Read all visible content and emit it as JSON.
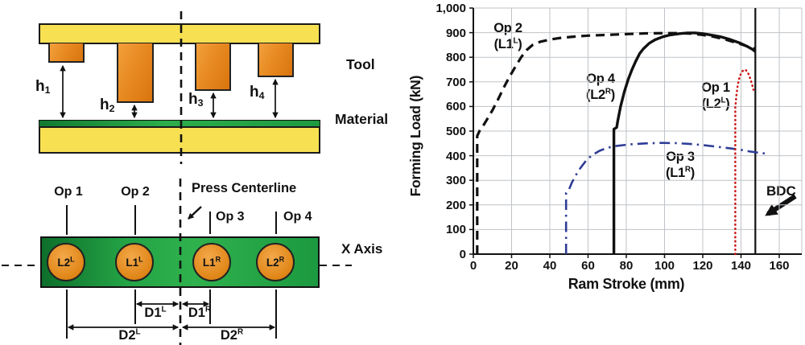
{
  "side_view": {
    "tool_label": "Tool",
    "material_label": "Material",
    "gap_labels": [
      {
        "base": "h",
        "sub": "1"
      },
      {
        "base": "h",
        "sub": "2"
      },
      {
        "base": "h",
        "sub": "3"
      },
      {
        "base": "h",
        "sub": "4"
      }
    ]
  },
  "top_view": {
    "op_labels": [
      "Op 1",
      "Op 2",
      "Op 3",
      "Op 4"
    ],
    "press_centerline_label": "Press Centerline",
    "x_axis_label": "X Axis",
    "station_labels": [
      {
        "base": "L2",
        "sup": "L"
      },
      {
        "base": "L1",
        "sup": "L"
      },
      {
        "base": "L1",
        "sup": "R"
      },
      {
        "base": "L2",
        "sup": "R"
      }
    ],
    "dim_labels": [
      {
        "base": "D1",
        "sup": "L"
      },
      {
        "base": "D1",
        "sup": "R"
      },
      {
        "base": "D2",
        "sup": "L"
      },
      {
        "base": "D2",
        "sup": "R"
      }
    ]
  },
  "chart_data": {
    "type": "line",
    "title": "",
    "xlabel": "Ram Stroke (mm)",
    "ylabel": "Forming Load (kN)",
    "xlim": [
      0,
      160
    ],
    "ylim": [
      0,
      1000
    ],
    "grid": true,
    "x_ticks": [
      0,
      20,
      40,
      60,
      80,
      100,
      120,
      140,
      160
    ],
    "x_tick_labels": [
      "0",
      "20",
      "40",
      "60",
      "80",
      "100",
      "120",
      "140",
      "160"
    ],
    "y_ticks": [
      0,
      100,
      200,
      300,
      400,
      500,
      600,
      700,
      800,
      900,
      1000
    ],
    "y_tick_labels": [
      "0",
      "100",
      "200",
      "300",
      "400",
      "500",
      "600",
      "700",
      "800",
      "900",
      "1,000"
    ],
    "bdc_line_x": 147.5,
    "bdc_label": "BDC",
    "annotations": [
      {
        "l1": "Op 2",
        "l2a": "(L1",
        "l2sup": "L",
        "l2b": ")"
      },
      {
        "l1": "Op 4",
        "l2a": "(L2",
        "l2sup": "R",
        "l2b": ")"
      },
      {
        "l1": "Op 1",
        "l2a": "(L2",
        "l2sup": "L",
        "l2b": ")"
      },
      {
        "l1": "Op 3",
        "l2a": "(L1",
        "l2sup": "R",
        "l2b": ")"
      }
    ],
    "series": [
      {
        "name": "Op 2 (L1-left)",
        "color": "#111111",
        "style": "dashed",
        "points": [
          [
            2,
            0
          ],
          [
            2,
            480
          ],
          [
            3.5,
            505
          ],
          [
            5,
            520
          ],
          [
            7,
            545
          ],
          [
            10,
            585
          ],
          [
            13,
            630
          ],
          [
            16,
            678
          ],
          [
            19,
            722
          ],
          [
            22,
            762
          ],
          [
            25,
            800
          ],
          [
            28,
            830
          ],
          [
            31,
            850
          ],
          [
            35,
            863
          ],
          [
            40,
            872
          ],
          [
            46,
            879
          ],
          [
            53,
            884
          ],
          [
            60,
            888
          ],
          [
            70,
            891
          ],
          [
            80,
            894
          ],
          [
            90,
            897
          ],
          [
            100,
            898
          ],
          [
            108,
            898
          ],
          [
            114,
            896
          ],
          [
            120,
            891
          ],
          [
            126,
            883
          ],
          [
            132,
            872
          ],
          [
            138,
            858
          ],
          [
            143,
            845
          ],
          [
            147.5,
            834
          ]
        ]
      },
      {
        "name": "Op 4 (L2-right)",
        "color": "#111111",
        "style": "solid",
        "points": [
          [
            73.5,
            0
          ],
          [
            73.5,
            508
          ],
          [
            75,
            515
          ],
          [
            75.5,
            540
          ],
          [
            77,
            600
          ],
          [
            79,
            660
          ],
          [
            81,
            710
          ],
          [
            83,
            750
          ],
          [
            85,
            785
          ],
          [
            87,
            815
          ],
          [
            89,
            835
          ],
          [
            92,
            857
          ],
          [
            95,
            871
          ],
          [
            99,
            883
          ],
          [
            103,
            891
          ],
          [
            108,
            896
          ],
          [
            112,
            899
          ],
          [
            116,
            899
          ],
          [
            120,
            896
          ],
          [
            124,
            891
          ],
          [
            129,
            884
          ],
          [
            134,
            873
          ],
          [
            139,
            859
          ],
          [
            143,
            845
          ],
          [
            146,
            832
          ],
          [
            147.5,
            823
          ]
        ]
      },
      {
        "name": "Op 3 (L1-right)",
        "color": "#2E3D96",
        "style": "dashdot",
        "points": [
          [
            48.5,
            0
          ],
          [
            48.5,
            248
          ],
          [
            50,
            262
          ],
          [
            51.5,
            290
          ],
          [
            53.5,
            320
          ],
          [
            56,
            350
          ],
          [
            59,
            380
          ],
          [
            62,
            402
          ],
          [
            66,
            420
          ],
          [
            70,
            432
          ],
          [
            75,
            440
          ],
          [
            82,
            446
          ],
          [
            90,
            450
          ],
          [
            98,
            452
          ],
          [
            106,
            451
          ],
          [
            113,
            448
          ],
          [
            120,
            443
          ],
          [
            127,
            437
          ],
          [
            133,
            431
          ],
          [
            139,
            425
          ],
          [
            144,
            418
          ],
          [
            149,
            412
          ],
          [
            154,
            408
          ]
        ]
      },
      {
        "name": "Op 1 (L2-left)",
        "color": "#CC1414",
        "style": "dotted",
        "points": [
          [
            137,
            0
          ],
          [
            137,
            595
          ],
          [
            137.6,
            645
          ],
          [
            138.3,
            688
          ],
          [
            139.2,
            718
          ],
          [
            140.2,
            738
          ],
          [
            141.3,
            748
          ],
          [
            142.3,
            749
          ],
          [
            143.3,
            742
          ],
          [
            144.3,
            726
          ],
          [
            145.2,
            705
          ],
          [
            146,
            683
          ],
          [
            146.5,
            668
          ]
        ]
      }
    ]
  }
}
